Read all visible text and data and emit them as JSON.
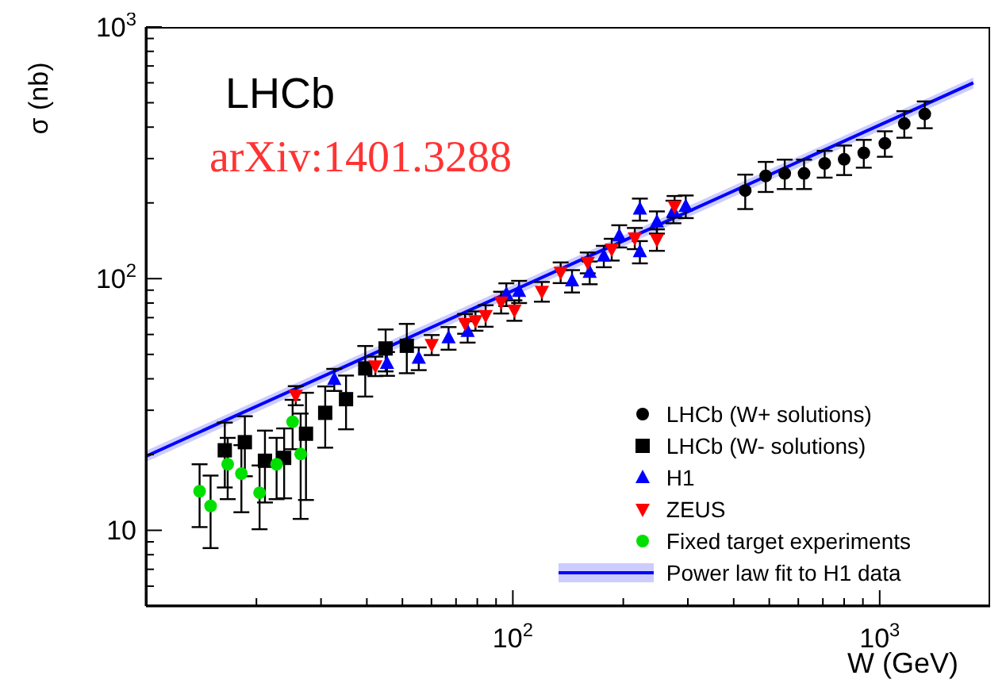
{
  "chart_data": {
    "type": "scatter",
    "xlabel": "W (GeV)",
    "ylabel": "σ (nb)",
    "log": "xy",
    "xlim": [
      10,
      2000
    ],
    "ylim": [
      5,
      1000
    ],
    "xticks": [
      {
        "value": 20,
        "label": null
      },
      {
        "value": 30,
        "label": null
      },
      {
        "value": 40,
        "label": null
      },
      {
        "value": 50,
        "label": null
      },
      {
        "value": 60,
        "label": null
      },
      {
        "value": 70,
        "label": null
      },
      {
        "value": 80,
        "label": null
      },
      {
        "value": 90,
        "label": null
      },
      {
        "value": 100,
        "label": "10$^{2}$"
      },
      {
        "value": 200,
        "label": null
      },
      {
        "value": 300,
        "label": null
      },
      {
        "value": 400,
        "label": null
      },
      {
        "value": 500,
        "label": null
      },
      {
        "value": 600,
        "label": null
      },
      {
        "value": 700,
        "label": null
      },
      {
        "value": 800,
        "label": null
      },
      {
        "value": 900,
        "label": null
      },
      {
        "value": 1000,
        "label": "10$^{3}$"
      }
    ],
    "yticks": [
      {
        "value": 6,
        "label": null
      },
      {
        "value": 7,
        "label": null
      },
      {
        "value": 8,
        "label": null
      },
      {
        "value": 9,
        "label": null
      },
      10,
      {
        "value": 20,
        "label": null
      },
      {
        "value": 30,
        "label": null
      },
      {
        "value": 40,
        "label": null
      },
      {
        "value": 50,
        "label": null
      },
      {
        "value": 60,
        "label": null
      },
      {
        "value": 70,
        "label": null
      },
      {
        "value": 80,
        "label": null
      },
      {
        "value": 90,
        "label": null
      },
      {
        "value": 100,
        "label": "10$^{2}$"
      },
      {
        "value": 200,
        "label": null
      },
      {
        "value": 300,
        "label": null
      },
      {
        "value": 400,
        "label": null
      },
      {
        "value": 500,
        "label": null
      },
      {
        "value": 600,
        "label": null
      },
      {
        "value": 700,
        "label": null
      },
      {
        "value": 800,
        "label": null
      },
      {
        "value": 900,
        "label": null
      },
      {
        "value": 1000,
        "label": "10$^{3}$"
      }
    ],
    "legend": "bottom right",
    "annotations": [
      "LHCb",
      "arXiv:1401.3288"
    ],
    "series": [
      {
        "name": "LHCb (W+ solutions)",
        "color": "#000000",
        "marker": "circle",
        "x": [
          430,
          489,
          551,
          622,
          708,
          800,
          905,
          1033,
          1167,
          1327
        ],
        "values": [
          224,
          256,
          262,
          262,
          287,
          298,
          316,
          345,
          413,
          451
        ],
        "errors": [
          35,
          35,
          35,
          35,
          35,
          40,
          40,
          40,
          50,
          55
        ]
      },
      {
        "name": "LHCb (W- solutions)",
        "color": "#000000",
        "marker": "square",
        "x": [
          16.4,
          18.6,
          21.1,
          23.8,
          27.3,
          30.8,
          35.1,
          39.6,
          45.0,
          51.4
        ],
        "values": [
          20.8,
          22.4,
          18.9,
          19.4,
          24.2,
          29.3,
          33.2,
          44.0,
          52.8,
          54.1
        ],
        "errors": [
          6,
          6,
          6,
          6,
          11,
          8,
          8,
          10,
          10,
          12
        ]
      },
      {
        "name": "H1",
        "color": "#0000ff",
        "marker": "triangle",
        "x": [
          32.6,
          45.4,
          55.4,
          66.8,
          75.3,
          96.0,
          104,
          145,
          162,
          177,
          195,
          222,
          222,
          247,
          274,
          296
        ],
        "values": [
          39.8,
          46.1,
          48.3,
          58.2,
          61.7,
          86.8,
          89.0,
          98.1,
          106,
          123,
          148,
          189,
          128,
          168,
          185,
          194
        ],
        "errors": [
          4,
          5,
          5,
          6,
          6,
          9,
          9,
          10,
          11,
          12,
          15,
          19,
          13,
          17,
          19,
          20
        ]
      },
      {
        "name": "ZEUS",
        "color": "#ff0000",
        "marker": "triangle-down",
        "x": [
          25.6,
          42.2,
          60.1,
          74.1,
          79.1,
          84.3,
          92.9,
          101,
          120,
          135,
          160,
          186,
          215,
          247,
          276
        ],
        "values": [
          34.4,
          45.0,
          54.7,
          66.4,
          68.1,
          71.4,
          80.7,
          75.0,
          89.0,
          106,
          116,
          131,
          145,
          143,
          194
        ],
        "errors": [
          3,
          4,
          5,
          6,
          6,
          7,
          8,
          7,
          8,
          10,
          11,
          13,
          14,
          14,
          19
        ]
      },
      {
        "name": "Fixed target experiments",
        "color": "#00e000",
        "marker": "circle",
        "x": [
          14.0,
          15.0,
          16.7,
          18.2,
          20.4,
          22.7,
          25.1,
          26.4
        ],
        "values": [
          14.3,
          12.5,
          18.3,
          16.8,
          14.1,
          18.3,
          27.0,
          20.1
        ],
        "errors": [
          4,
          4,
          5,
          5,
          4,
          5,
          6,
          9
        ]
      },
      {
        "name": "Power law fit to H1 data",
        "type": "line",
        "color": "#0000ff",
        "line_style": "solid",
        "marker": "none",
        "x": [
          10,
          1800
        ],
        "values": [
          19.7,
          600
        ],
        "lower": [
          18.7,
          570
        ],
        "upper": [
          20.7,
          630
        ]
      }
    ]
  }
}
